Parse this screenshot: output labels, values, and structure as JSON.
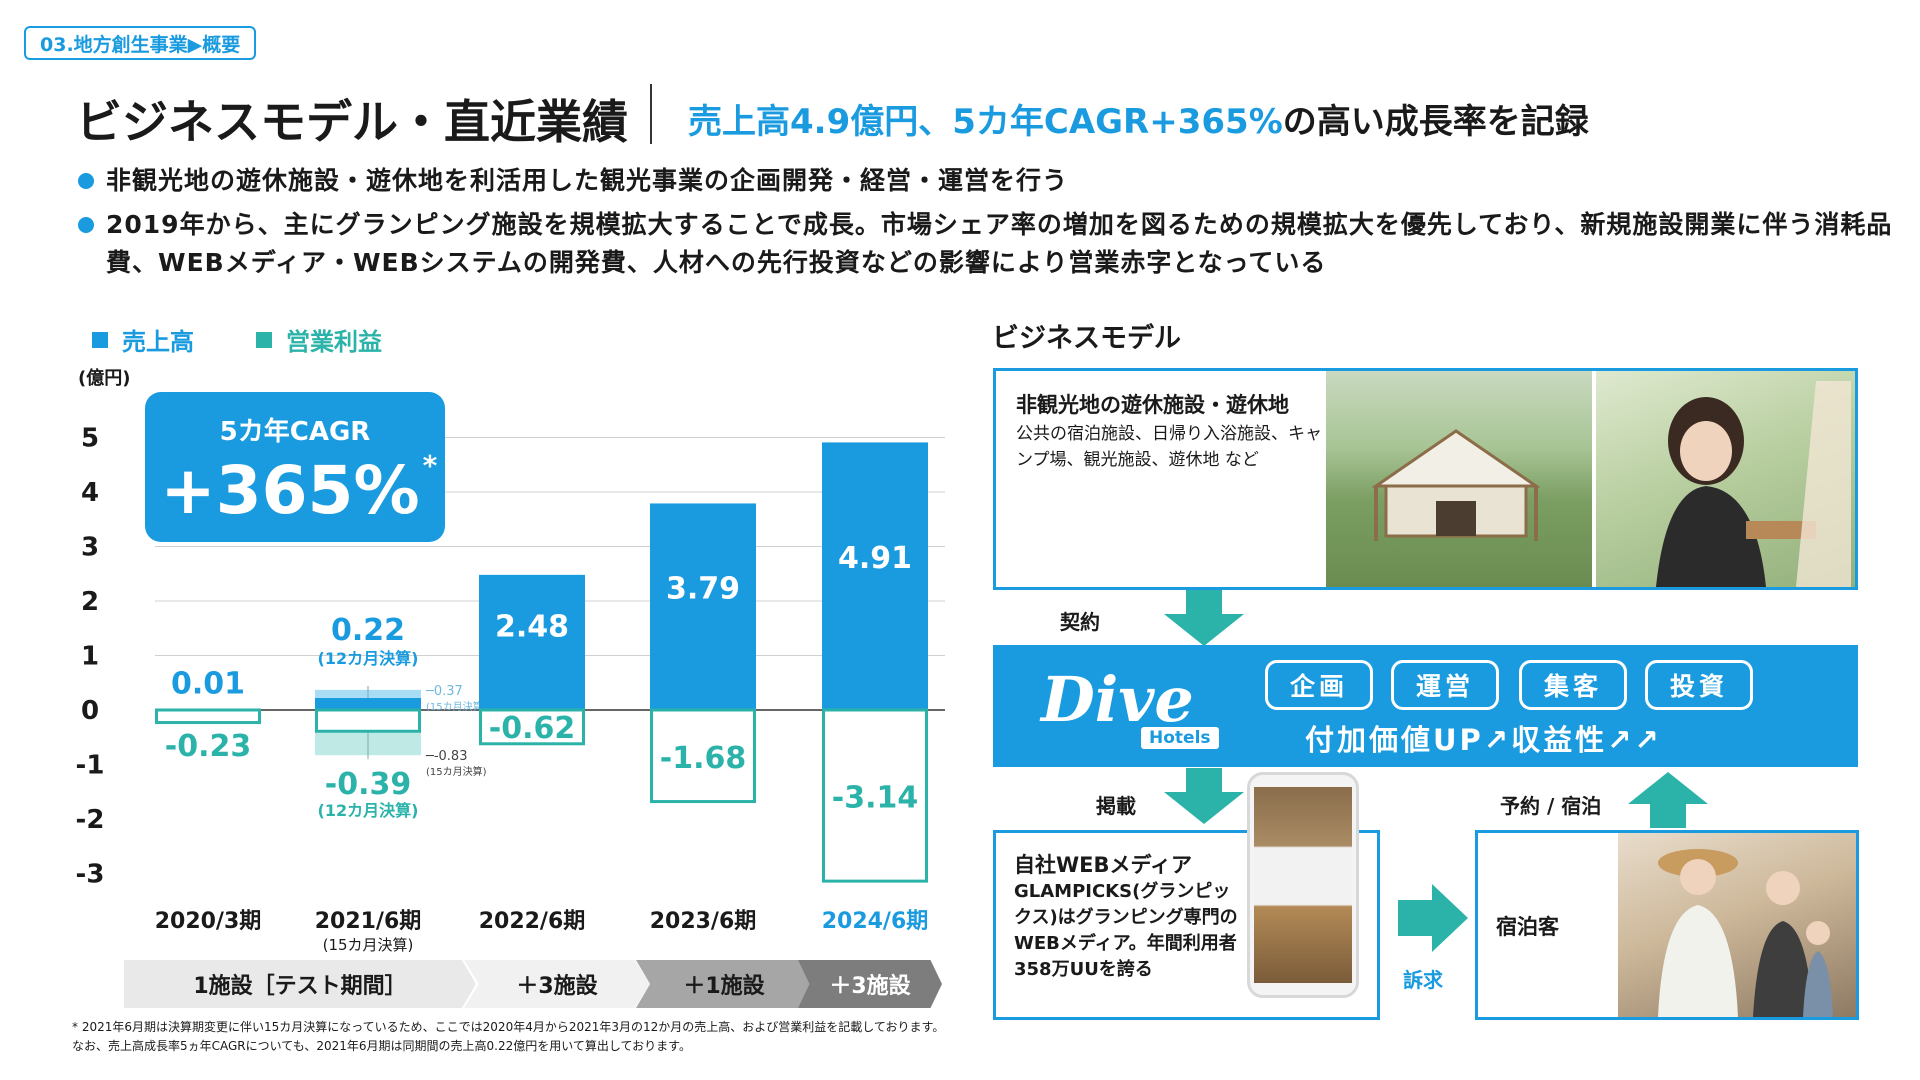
{
  "section_tag": "03.地方創生事業▶概要",
  "title": "ビジネスモデル・直近業績",
  "subtitle_hl": "売上高4.9億円、5カ年CAGR+365%",
  "subtitle_rest": "の高い成長率を記録",
  "bullets": [
    "非観光地の遊休施設・遊休地を利活用した観光事業の企画開発・経営・運営を行う",
    "2019年から、主にグランピング施設を規模拡大することで成長。市場シェア率の増加を図るための規模拡大を優先しており、新規施設開業に伴う消耗品費、WEBメディア・WEBシステムの開発費、人材への先行投資などの影響により営業赤字となっている"
  ],
  "legend": {
    "revenue": "売上高",
    "profit": "営業利益"
  },
  "colors": {
    "revenue": "#1a9be0",
    "profit": "#2bb3aa",
    "light_revenue": "#a9dcf5",
    "light_profit": "#bfe9e5"
  },
  "cagr_box": {
    "label": "5カ年CAGR",
    "value": "+365%",
    "mark": "*"
  },
  "chart_data": {
    "type": "bar",
    "unit_label": "(億円)",
    "ylim": [
      -3,
      5
    ],
    "yticks": [
      "5",
      "4",
      "3",
      "2",
      "1",
      "0",
      "-1",
      "-2",
      "-3"
    ],
    "categories": [
      "2020/3期",
      "2021/6期",
      "2022/6期",
      "2023/6期",
      "2024/6期"
    ],
    "category_subs": [
      "",
      "(15カ月決算)",
      "",
      "",
      ""
    ],
    "series": [
      {
        "name": "売上高",
        "values": [
          0.01,
          0.22,
          2.48,
          3.79,
          4.91
        ]
      },
      {
        "name": "営業利益",
        "values": [
          -0.23,
          -0.39,
          -0.62,
          -1.68,
          -3.14
        ]
      }
    ],
    "revenue_labels": [
      "0.01",
      "0.22",
      "2.48",
      "3.79",
      "4.91"
    ],
    "profit_labels": [
      "-0.23",
      "-0.39",
      "-0.62",
      "-1.68",
      "-3.14"
    ],
    "fy2021_note_revenue": "(12カ月決算)",
    "fy2021_note_profit": "(12カ月決算)",
    "fy2021_15m": {
      "revenue": 0.37,
      "profit": -0.83,
      "revenue_label": "0.37",
      "profit_label": "-0.83",
      "note": "(15カ月決算)"
    }
  },
  "phases": [
    "1施設［テスト期間］",
    "＋3施設",
    "＋1施設",
    "＋3施設"
  ],
  "footnote": "* 2021年6月期は決算期変更に伴い15カ月決算になっているため、ここでは2020年4月から2021年3月の12か月の売上高、および営業利益を記載しております。なお、売上高成長率5ヵ年CAGRについても、2021年6月期は同期間の売上高0.22億円を用いて算出しております。",
  "business_model": {
    "title": "ビジネスモデル",
    "source_heading": "非観光地の遊休施設・遊休地",
    "source_body": "公共の宿泊施設、日帰り入浴施設、キャンプ場、観光施設、遊休地 など",
    "contract": "契約",
    "dive_logo": "Dive",
    "hotels": "Hotels",
    "pills": [
      "企画",
      "運営",
      "集客",
      "投資"
    ],
    "value_up": "付加価値UP↗収益性↗↗",
    "listing": "掲載",
    "booking": "予約 / 宿泊",
    "media_heading": "自社WEBメディア",
    "media_body": "GLAMPICKS(グランピックス)はグランピング専門のWEBメディア。年間利用者358万UUを誇る",
    "appeal": "訴求",
    "guest": "宿泊客"
  }
}
